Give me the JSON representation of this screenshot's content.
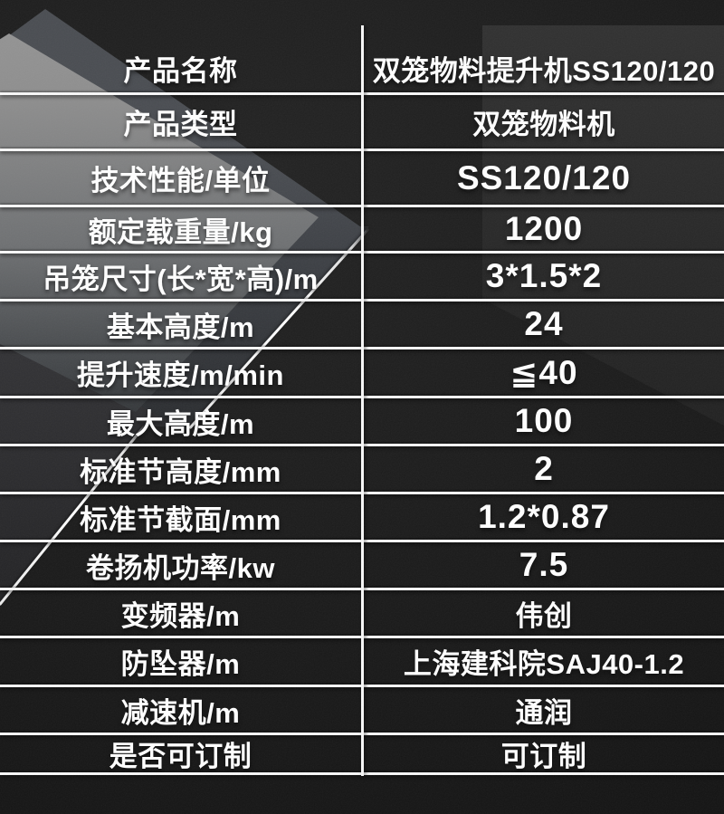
{
  "table": {
    "rows": [
      {
        "label": "产品名称",
        "value": "双笼物料提升机SS120/120"
      },
      {
        "label": "产品类型",
        "value": "双笼物料机"
      },
      {
        "label": "技术性能/单位",
        "value": "SS120/120"
      },
      {
        "label": "额定载重量/kg",
        "value": "1200"
      },
      {
        "label": "吊笼尺寸(长*宽*高)/m",
        "value": "3*1.5*2"
      },
      {
        "label": "基本高度/m",
        "value": "24"
      },
      {
        "label": "提升速度/m/min",
        "value": "≦40"
      },
      {
        "label": "最大高度/m",
        "value": "100"
      },
      {
        "label": "标准节高度/mm",
        "value": "2"
      },
      {
        "label": "标准节截面/mm",
        "value": "1.2*0.87"
      },
      {
        "label": "卷扬机功率/kw",
        "value": "7.5"
      },
      {
        "label": "变频器/m",
        "value": "伟创"
      },
      {
        "label": "防坠器/m",
        "value": "上海建科院SAJ40-1.2"
      },
      {
        "label": "减速机/m",
        "value": "通润"
      },
      {
        "label": "是否可订制",
        "value": "可订制"
      }
    ]
  },
  "colors": {
    "background": "#1b1b1b",
    "divider_line": "#f7f7f7",
    "text": "#ffffff",
    "sheet_light": "#8f8f8f",
    "highlight_streak": "#ffffff"
  }
}
